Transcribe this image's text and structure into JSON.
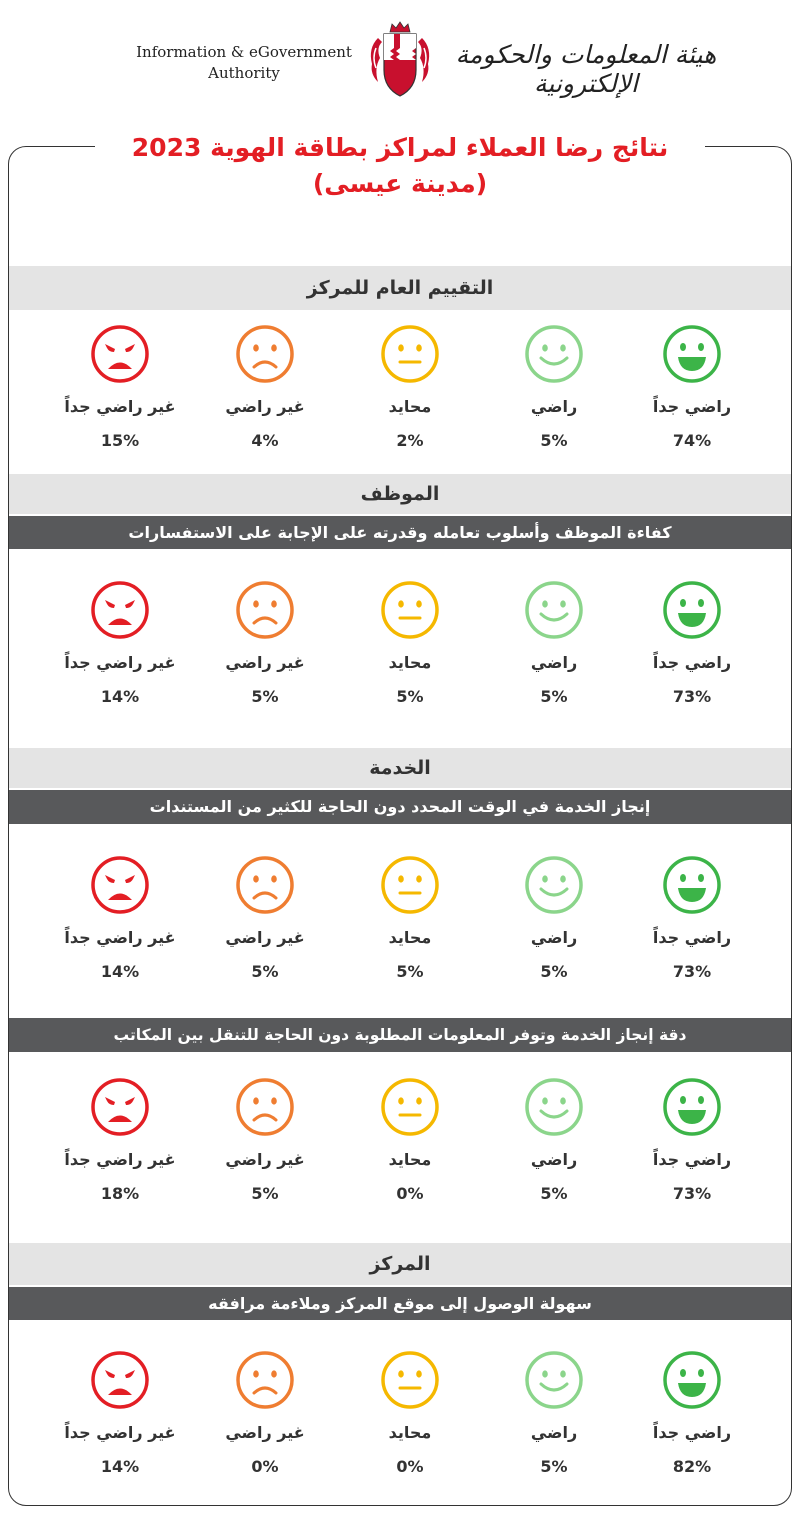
{
  "header": {
    "org_en_line1": "Information & eGovernment",
    "org_en_line2": "Authority",
    "org_ar": "هيئة المعلومات والحكومة الإلكترونية"
  },
  "title": {
    "line1": "نتائج رضا العملاء لمراكز بطاقة الهوية 2023",
    "line2": "(مدينة عيسى)"
  },
  "colors": {
    "very_satisfied": "#3cb448",
    "satisfied": "#8bd58b",
    "neutral": "#f5b800",
    "unsatisfied": "#ef7d31",
    "very_unsatisfied": "#e31e24",
    "title_red": "#e31e24",
    "dark_band": "#58595b",
    "gray_band": "#e4e4e4"
  },
  "labels": {
    "very_satisfied": "راضي جداً",
    "satisfied": "راضي",
    "neutral": "محايد",
    "unsatisfied": "غير راضي",
    "very_unsatisfied": "غير راضي جداً"
  },
  "sections": {
    "overall": "التقييم العام للمركز",
    "employee": "الموظف",
    "service": "الخدمة",
    "center": "المركز"
  },
  "questions": {
    "employee_q1": "كفاءة الموظف وأسلوب تعامله وقدرته على الإجابة على الاستفسارات",
    "service_q1": "إنجاز الخدمة في الوقت المحدد دون الحاجة للكثير من المستندات",
    "service_q2": "دقة إنجاز الخدمة وتوفر المعلومات المطلوبة دون الحاجة للتنقل بين المكاتب",
    "center_q1": "سهولة الوصول إلى موقع المركز وملاءمة مرافقه"
  },
  "results": {
    "overall": {
      "very_satisfied": "74%",
      "satisfied": "5%",
      "neutral": "2%",
      "unsatisfied": "4%",
      "very_unsatisfied": "15%"
    },
    "employee_q1": {
      "very_satisfied": "73%",
      "satisfied": "5%",
      "neutral": "5%",
      "unsatisfied": "5%",
      "very_unsatisfied": "14%"
    },
    "service_q1": {
      "very_satisfied": "73%",
      "satisfied": "5%",
      "neutral": "5%",
      "unsatisfied": "5%",
      "very_unsatisfied": "14%"
    },
    "service_q2": {
      "very_satisfied": "73%",
      "satisfied": "5%",
      "neutral": "0%",
      "unsatisfied": "5%",
      "very_unsatisfied": "18%"
    },
    "center_q1": {
      "very_satisfied": "82%",
      "satisfied": "5%",
      "neutral": "0%",
      "unsatisfied": "0%",
      "very_unsatisfied": "14%"
    }
  }
}
